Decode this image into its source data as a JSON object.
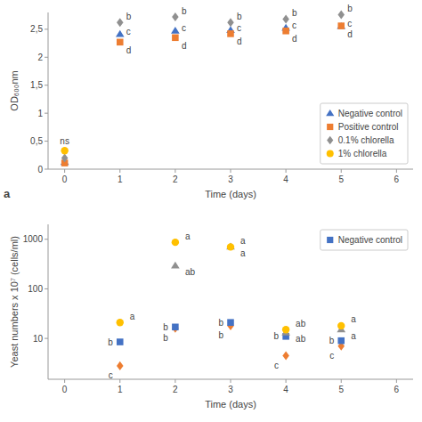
{
  "chart_data": [
    {
      "type": "scatter",
      "x_label": "Time (days)",
      "y_label": "OD₆₀₀nm",
      "xlim": [
        -0.3,
        6.3
      ],
      "ylim": [
        0,
        2.8
      ],
      "xticks": [
        0,
        1,
        2,
        3,
        4,
        5,
        6
      ],
      "yticks": [
        0,
        {
          "value": 0.5,
          "label": "0,5"
        },
        1,
        {
          "value": 1.5,
          "label": "1,5"
        },
        2,
        {
          "value": 2.5,
          "label": "2,5"
        }
      ],
      "grid": false,
      "legend": "lower right",
      "series": [
        {
          "name": "Negative control",
          "color": "#4472C4",
          "marker": "triangle",
          "x": [
            0,
            1,
            2,
            3,
            4,
            5
          ],
          "values": [
            0.12,
            2.41,
            2.47,
            2.48,
            2.52,
            2.55
          ],
          "labels": [
            null,
            "c",
            "c",
            "c",
            "c",
            "c"
          ]
        },
        {
          "name": "Positive control",
          "color": "#ED7D31",
          "marker": "square",
          "x": [
            0,
            1,
            2,
            3,
            4,
            5
          ],
          "values": [
            0.11,
            2.27,
            2.35,
            2.42,
            2.47,
            2.56
          ],
          "labels": [
            null,
            "d",
            "d",
            "d",
            "d",
            "d"
          ]
        },
        {
          "name": "0.1% chlorella",
          "color": "#909090",
          "marker": "diamond",
          "x": [
            0,
            1,
            2,
            3,
            4,
            5
          ],
          "values": [
            0.2,
            2.62,
            2.72,
            2.62,
            2.68,
            2.76
          ],
          "labels": [
            null,
            "b",
            "b",
            "b",
            "b",
            "b"
          ]
        },
        {
          "name": "1% chlorella",
          "color": "#FFC000",
          "marker": "circle",
          "x": [
            0
          ],
          "values": [
            0.33
          ],
          "labels": [
            null
          ]
        }
      ],
      "annotations": [
        {
          "text": "ns",
          "x": 0,
          "y": 0.5
        },
        {
          "text": "a"
        }
      ]
    },
    {
      "type": "scatter",
      "x_label": "Time (days)",
      "y_label": "Yeast numbers x 10⁷ (cells/ml)",
      "log": "y",
      "xlim": [
        -0.3,
        6.3
      ],
      "ylim": [
        1.5,
        2000
      ],
      "xticks": [
        0,
        1,
        2,
        3,
        4,
        5,
        6
      ],
      "yticks": [
        10,
        100,
        1000
      ],
      "grid": false,
      "legend": "upper right",
      "series": [
        {
          "color": "#ED7D31",
          "marker": "diamond",
          "x": [
            1,
            2,
            3,
            4,
            5
          ],
          "values": [
            2.8,
            16,
            18,
            4.5,
            7
          ],
          "labels": [
            "c",
            "b",
            "b",
            "c",
            "c"
          ]
        },
        {
          "name": "Negative control",
          "color": "#4472C4",
          "marker": "square",
          "x": [
            1,
            2,
            3,
            4,
            5
          ],
          "values": [
            8.5,
            17,
            21,
            11,
            9
          ],
          "labels": [
            "b",
            "b",
            "b",
            "b",
            "b"
          ]
        },
        {
          "color": "#909090",
          "marker": "triangle",
          "x": [
            2,
            3,
            4,
            5
          ],
          "values": [
            290,
            700,
            13,
            15
          ],
          "labels": [
            "ab",
            "a",
            "ab",
            "a"
          ]
        },
        {
          "color": "#FFC000",
          "marker": "circle",
          "x": [
            1,
            2,
            3,
            4,
            5
          ],
          "values": [
            21,
            870,
            700,
            15,
            18
          ],
          "labels": [
            "a",
            "a",
            "a",
            "ab",
            "a"
          ]
        }
      ]
    }
  ]
}
